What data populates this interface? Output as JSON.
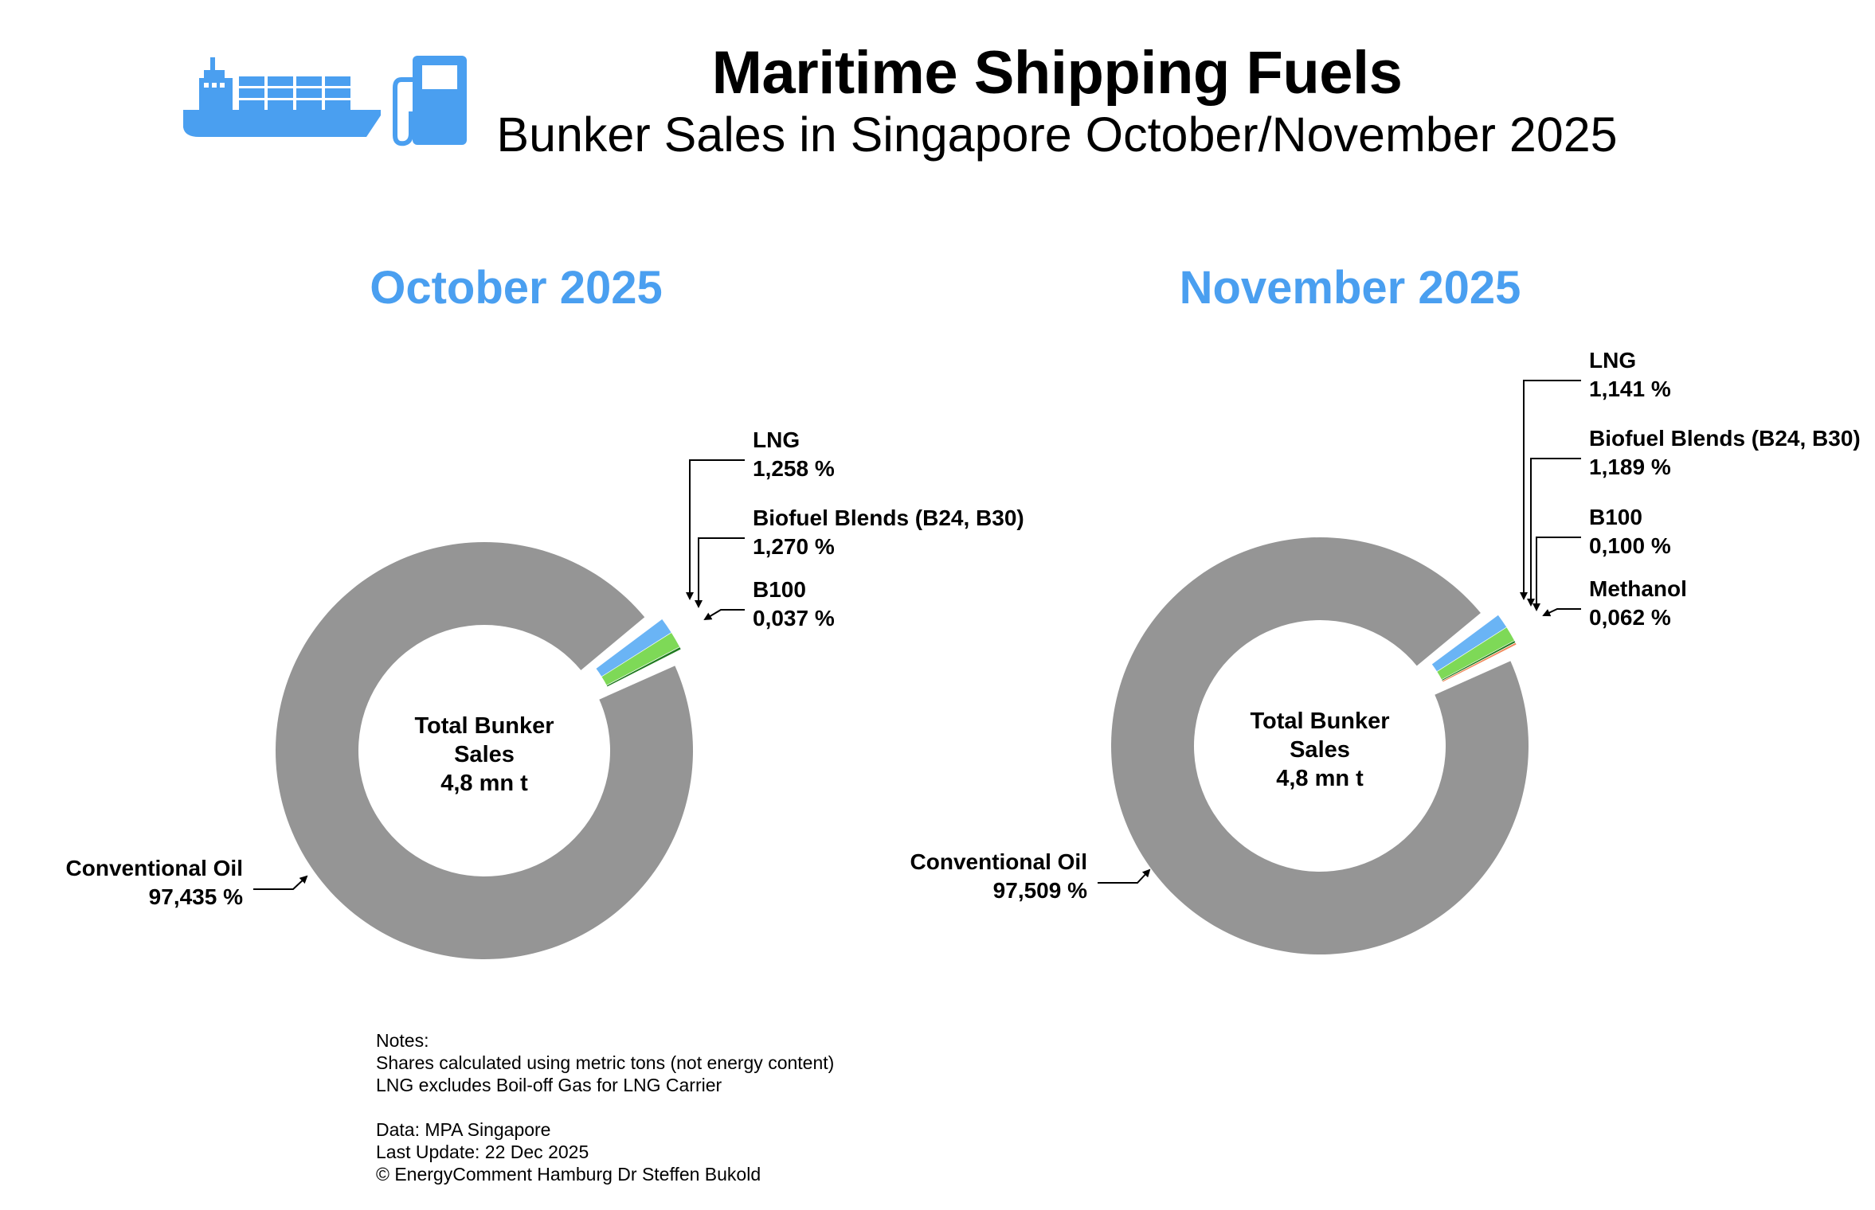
{
  "header": {
    "title": "Maritime Shipping Fuels",
    "subtitle": "Bunker Sales in Singapore October/November 2025"
  },
  "icons": [
    "container-ship-icon",
    "fuel-pump-icon"
  ],
  "colors": {
    "accent": "#4a9ff0",
    "conventional_oil": "#959595",
    "lng": "#6ab4f5",
    "biofuel_blends": "#7ed957",
    "b100": "#1f7a1f",
    "methanol": "#f08a5d"
  },
  "chart_data": [
    {
      "type": "pie",
      "title": "October 2025",
      "center_label": [
        "Total Bunker",
        "Sales",
        "4,8 mn t"
      ],
      "slices": [
        {
          "name": "Conventional Oil",
          "value": 97.435,
          "label": "97,435 %"
        },
        {
          "name": "LNG",
          "value": 1.258,
          "label": "1,258 %"
        },
        {
          "name": "Biofuel Blends (B24, B30)",
          "value": 1.27,
          "label": "1,270 %"
        },
        {
          "name": "B100",
          "value": 0.037,
          "label": "0,037 %"
        }
      ]
    },
    {
      "type": "pie",
      "title": "November 2025",
      "center_label": [
        "Total Bunker",
        "Sales",
        "4,8 mn t"
      ],
      "slices": [
        {
          "name": "Conventional Oil",
          "value": 97.509,
          "label": "97,509 %"
        },
        {
          "name": "LNG",
          "value": 1.141,
          "label": "1,141 %"
        },
        {
          "name": "Biofuel Blends (B24, B30)",
          "value": 1.189,
          "label": "1,189 %"
        },
        {
          "name": "B100",
          "value": 0.1,
          "label": "0,100 %"
        },
        {
          "name": "Methanol",
          "value": 0.062,
          "label": "0,062 %"
        }
      ]
    }
  ],
  "notes": [
    "Notes:",
    "Shares calculated using metric tons (not energy content)",
    "LNG excludes Boil-off Gas for LNG Carrier",
    "",
    "Data: MPA Singapore",
    "Last Update: 22 Dec 2025",
    "© EnergyComment Hamburg Dr Steffen Bukold"
  ]
}
